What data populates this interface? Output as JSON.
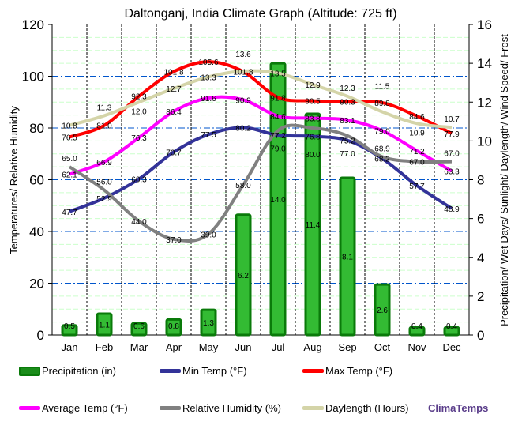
{
  "chart_data": {
    "type": "bar+line",
    "title": "Daltonganj, India Climate Graph (Altitude: 725 ft)",
    "ylabel_left": "Temperatures/ Relative Humidity",
    "ylabel_right": "Precipitation/ Wet Days/ Sunlight/ Daylength/ Wind Speed/ Frost",
    "ylim_left": [
      0,
      120
    ],
    "yticks_left": [
      0,
      20,
      40,
      60,
      80,
      100,
      120
    ],
    "ylim_right": [
      0,
      16
    ],
    "yticks_right": [
      0,
      2,
      4,
      6,
      8,
      10,
      12,
      14,
      16
    ],
    "grid": true,
    "legend": "bottom",
    "categories": [
      "Jan",
      "Feb",
      "Mar",
      "Apr",
      "May",
      "Jun",
      "Jul",
      "Aug",
      "Sep",
      "Oct",
      "Nov",
      "Dec"
    ],
    "series": [
      {
        "name": "Precipitation (in)",
        "type": "bar",
        "axis": "right",
        "color": "#1a8c1a",
        "values": [
          0.5,
          1.1,
          0.6,
          0.8,
          1.3,
          6.2,
          14.0,
          11.4,
          8.1,
          2.6,
          0.4,
          0.4
        ]
      },
      {
        "name": "Min Temp (°F)",
        "type": "line",
        "axis": "left",
        "color": "#333399",
        "values": [
          47.7,
          52.9,
          60.3,
          70.7,
          77.5,
          80.2,
          77.2,
          76.8,
          75.2,
          68.2,
          57.7,
          48.9
        ]
      },
      {
        "name": "Max Temp (°F)",
        "type": "line",
        "axis": "left",
        "color": "#ff0000",
        "values": [
          76.5,
          81.0,
          92.3,
          101.8,
          105.6,
          101.8,
          91.8,
          90.5,
          90.3,
          89.8,
          84.6,
          77.9
        ]
      },
      {
        "name": "Average Temp (°F)",
        "type": "line",
        "axis": "left",
        "color": "#ff00ff",
        "values": [
          62.1,
          66.9,
          76.3,
          86.4,
          91.6,
          90.9,
          84.6,
          83.8,
          83.1,
          79.0,
          71.2,
          63.3
        ]
      },
      {
        "name": "Relative Humidity (%)",
        "type": "line",
        "axis": "left",
        "color": "#808080",
        "values": [
          65.0,
          56.0,
          44.0,
          37.0,
          39.0,
          58.0,
          79.0,
          80.0,
          77.0,
          68.9,
          67.0,
          67.0
        ]
      },
      {
        "name": "Daylength (Hours)",
        "type": "line",
        "axis": "right",
        "color": "#d4d4a8",
        "values": [
          10.8,
          11.3,
          12.0,
          12.7,
          13.3,
          13.6,
          13.5,
          12.9,
          12.3,
          11.5,
          10.9,
          10.7
        ]
      }
    ]
  },
  "brand": "ClimaTemps"
}
